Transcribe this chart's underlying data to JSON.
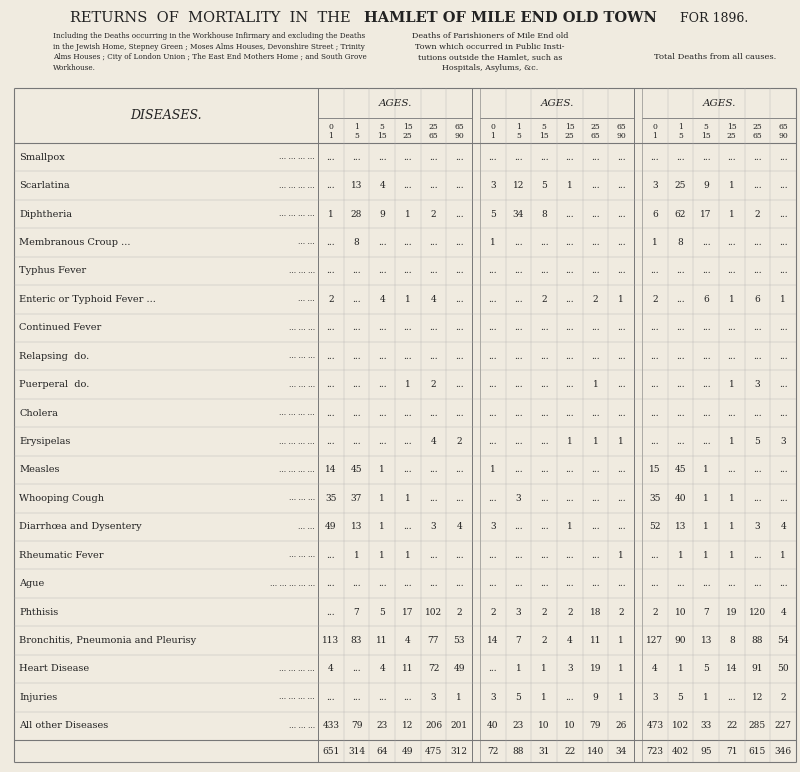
{
  "title1": "RETURNS  OF  MORTALITY  IN  THE",
  "title2": "HAMLET OF MILE END OLD TOWN",
  "title_year": "FOR 1896.",
  "subtitle_left": "Including the Deaths occurring in the Workhouse Infirmary and excluding the Deaths\nin the Jewish Home, Stepney Green ; Moses Alms Houses, Devonshire Street ; Trinity\nAlms Houses ; City of London Union ; The East End Mothers Home ; and South Grove\nWorkhouse.",
  "subtitle_mid": "Deaths of Parishioners of Mile End old\nTown which occurred in Public Insti-\ntutions outside the Hamlet, such as\nHospitals, Asylums, &c.",
  "subtitle_right": "Total Deaths from all causes.",
  "col_header": "AGES.",
  "diseases_label": "DISEASES.",
  "age_row1": [
    "0",
    "1",
    "5",
    "15",
    "25",
    "65"
  ],
  "age_row2": [
    "1",
    "5",
    "15",
    "25",
    "65",
    "90"
  ],
  "diseases": [
    "Smallpox",
    "Scarlatina",
    "Diphtheria",
    "Membranous Croup ...",
    "Typhus Fever",
    "Enteric or Typhoid Fever ...",
    "Continued Fever",
    "Relapsing  do.",
    "Puerperal  do.",
    "Cholera",
    "Erysipelas",
    "Measles",
    "Whooping Cough",
    "Diarrhœa and Dysentery",
    "Rheumatic Fever",
    "Ague",
    "Phthisis",
    "Bronchitis, Pneumonia and Pleurisy",
    "Heart Disease",
    "Injuries",
    "All other Diseases"
  ],
  "disease_trailing": [
    "... ... ... ...",
    "... ... ... ...",
    "... ... ... ...",
    "... ...",
    "... ... ...",
    "... ...",
    "... ... ...",
    "... ... ...",
    "... ... ...",
    "... ... ... ...",
    "... ... ... ...",
    "... ... ... ...",
    "... ... ...",
    "... ...",
    "... ... ...",
    "... ... ... ... ...",
    "",
    "",
    "... ... ... ...",
    "... ... ... ...",
    "... ... ..."
  ],
  "col1_data": [
    [
      "...",
      "...",
      "...",
      "...",
      "...",
      "..."
    ],
    [
      "...",
      "13",
      "4",
      "...",
      "...",
      "..."
    ],
    [
      "1",
      "28",
      "9",
      "1",
      "2",
      "..."
    ],
    [
      "...",
      "8",
      "...",
      "...",
      "...",
      "..."
    ],
    [
      "...",
      "...",
      "...",
      "...",
      "...",
      "..."
    ],
    [
      "2",
      "...",
      "4",
      "1",
      "4",
      "..."
    ],
    [
      "...",
      "...",
      "...",
      "...",
      "...",
      "..."
    ],
    [
      "...",
      "...",
      "...",
      "...",
      "...",
      "..."
    ],
    [
      "...",
      "...",
      "...",
      "1",
      "2",
      "..."
    ],
    [
      "...",
      "...",
      "...",
      "...",
      "...",
      "..."
    ],
    [
      "...",
      "...",
      "...",
      "...",
      "4",
      "2"
    ],
    [
      "14",
      "45",
      "1",
      "...",
      "...",
      "..."
    ],
    [
      "35",
      "37",
      "1",
      "1",
      "...",
      "..."
    ],
    [
      "49",
      "13",
      "1",
      "...",
      "3",
      "4"
    ],
    [
      "...",
      "1",
      "1",
      "1",
      "...",
      "..."
    ],
    [
      "...",
      "...",
      "...",
      "...",
      "...",
      "..."
    ],
    [
      "...",
      "7",
      "5",
      "17",
      "102",
      "2"
    ],
    [
      "113",
      "83",
      "11",
      "4",
      "77",
      "53"
    ],
    [
      "4",
      "...",
      "4",
      "11",
      "72",
      "49"
    ],
    [
      "...",
      "...",
      "...",
      "...",
      "3",
      "1"
    ],
    [
      "433",
      "79",
      "23",
      "12",
      "206",
      "201"
    ]
  ],
  "col1_totals": [
    "651",
    "314",
    "64",
    "49",
    "475",
    "312"
  ],
  "col2_data": [
    [
      "...",
      "...",
      "...",
      "...",
      "...",
      "..."
    ],
    [
      "3",
      "12",
      "5",
      "1",
      "...",
      "..."
    ],
    [
      "5",
      "34",
      "8",
      "...",
      "...",
      "..."
    ],
    [
      "1",
      "...",
      "...",
      "...",
      "...",
      "..."
    ],
    [
      "...",
      "...",
      "...",
      "...",
      "...",
      "..."
    ],
    [
      "...",
      "...",
      "2",
      "...",
      "2",
      "1"
    ],
    [
      "...",
      "...",
      "...",
      "...",
      "...",
      "..."
    ],
    [
      "...",
      "...",
      "...",
      "...",
      "...",
      "..."
    ],
    [
      "...",
      "...",
      "...",
      "...",
      "1",
      "..."
    ],
    [
      "...",
      "...",
      "...",
      "...",
      "...",
      "..."
    ],
    [
      "...",
      "...",
      "...",
      "1",
      "1",
      "1"
    ],
    [
      "1",
      "...",
      "...",
      "...",
      "...",
      "..."
    ],
    [
      "...",
      "3",
      "...",
      "...",
      "...",
      "..."
    ],
    [
      "3",
      "...",
      "...",
      "1",
      "...",
      "..."
    ],
    [
      "...",
      "...",
      "...",
      "...",
      "...",
      "1"
    ],
    [
      "...",
      "...",
      "...",
      "...",
      "...",
      "..."
    ],
    [
      "2",
      "3",
      "2",
      "2",
      "18",
      "2"
    ],
    [
      "14",
      "7",
      "2",
      "4",
      "11",
      "1"
    ],
    [
      "...",
      "1",
      "1",
      "3",
      "19",
      "1"
    ],
    [
      "3",
      "5",
      "1",
      "...",
      "9",
      "1"
    ],
    [
      "40",
      "23",
      "10",
      "10",
      "79",
      "26"
    ]
  ],
  "col2_totals": [
    "72",
    "88",
    "31",
    "22",
    "140",
    "34"
  ],
  "col3_data": [
    [
      "...",
      "...",
      "...",
      "...",
      "...",
      "..."
    ],
    [
      "3",
      "25",
      "9",
      "1",
      "...",
      "..."
    ],
    [
      "6",
      "62",
      "17",
      "1",
      "2",
      "..."
    ],
    [
      "1",
      "8",
      "...",
      "...",
      "...",
      "..."
    ],
    [
      "...",
      "...",
      "...",
      "...",
      "...",
      "..."
    ],
    [
      "2",
      "...",
      "6",
      "1",
      "6",
      "1"
    ],
    [
      "...",
      "...",
      "...",
      "...",
      "...",
      "..."
    ],
    [
      "...",
      "...",
      "...",
      "...",
      "...",
      "..."
    ],
    [
      "...",
      "...",
      "...",
      "1",
      "3",
      "..."
    ],
    [
      "...",
      "...",
      "...",
      "...",
      "...",
      "..."
    ],
    [
      "...",
      "...",
      "...",
      "1",
      "5",
      "3"
    ],
    [
      "15",
      "45",
      "1",
      "...",
      "...",
      "..."
    ],
    [
      "35",
      "40",
      "1",
      "1",
      "...",
      "..."
    ],
    [
      "52",
      "13",
      "1",
      "1",
      "3",
      "4"
    ],
    [
      "...",
      "1",
      "1",
      "1",
      "...",
      "1"
    ],
    [
      "...",
      "...",
      "...",
      "...",
      "...",
      "..."
    ],
    [
      "2",
      "10",
      "7",
      "19",
      "120",
      "4"
    ],
    [
      "127",
      "90",
      "13",
      "8",
      "88",
      "54"
    ],
    [
      "4",
      "1",
      "5",
      "14",
      "91",
      "50"
    ],
    [
      "3",
      "5",
      "1",
      "...",
      "12",
      "2"
    ],
    [
      "473",
      "102",
      "33",
      "22",
      "285",
      "227"
    ]
  ],
  "col3_totals": [
    "723",
    "402",
    "95",
    "71",
    "615",
    "346"
  ],
  "bg_color": "#f0ebe0",
  "text_color": "#222222",
  "line_color": "#777777"
}
